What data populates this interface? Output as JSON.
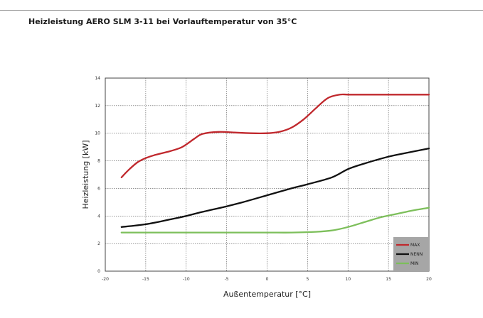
{
  "page": {
    "title": "Heizleistung AERO SLM 3-11 bei Vorlauftemperatur von 35°C"
  },
  "chart_data": {
    "type": "line",
    "title": "",
    "xlabel": "Außentemperatur [°C]",
    "ylabel": "Heizleistung [kW]",
    "xlim": [
      -20,
      20
    ],
    "ylim": [
      0,
      14
    ],
    "xticks": [
      -20,
      -15,
      -10,
      -5,
      0,
      5,
      10,
      15,
      20
    ],
    "yticks": [
      0,
      2,
      4,
      6,
      8,
      10,
      12,
      14
    ],
    "grid": true,
    "legend_position": "bottom-right",
    "series": [
      {
        "name": "MAX",
        "color": "#c0282d",
        "points": [
          [
            -18,
            6.8
          ],
          [
            -17,
            7.4
          ],
          [
            -16,
            7.9
          ],
          [
            -15,
            8.2
          ],
          [
            -14,
            8.4
          ],
          [
            -12,
            8.7
          ],
          [
            -10.5,
            9.0
          ],
          [
            -9,
            9.6
          ],
          [
            -8,
            9.95
          ],
          [
            -6,
            10.1
          ],
          [
            -4,
            10.05
          ],
          [
            -2,
            10.0
          ],
          [
            0,
            10.0
          ],
          [
            1.5,
            10.1
          ],
          [
            3,
            10.4
          ],
          [
            4.5,
            11.0
          ],
          [
            6,
            11.8
          ],
          [
            7.5,
            12.55
          ],
          [
            9,
            12.8
          ],
          [
            10,
            12.8
          ],
          [
            12,
            12.8
          ],
          [
            15,
            12.8
          ],
          [
            20,
            12.8
          ]
        ]
      },
      {
        "name": "NENN",
        "color": "#111111",
        "points": [
          [
            -18,
            3.2
          ],
          [
            -15,
            3.4
          ],
          [
            -12,
            3.75
          ],
          [
            -10,
            4.0
          ],
          [
            -8,
            4.3
          ],
          [
            -5,
            4.7
          ],
          [
            -3,
            5.0
          ],
          [
            0,
            5.5
          ],
          [
            3,
            6.0
          ],
          [
            5,
            6.3
          ],
          [
            8,
            6.8
          ],
          [
            10,
            7.4
          ],
          [
            12,
            7.8
          ],
          [
            15,
            8.3
          ],
          [
            17,
            8.55
          ],
          [
            20,
            8.9
          ]
        ]
      },
      {
        "name": "MIN",
        "color": "#7dbf5b",
        "points": [
          [
            -18,
            2.8
          ],
          [
            -15,
            2.8
          ],
          [
            -10,
            2.8
          ],
          [
            -5,
            2.8
          ],
          [
            0,
            2.8
          ],
          [
            3,
            2.8
          ],
          [
            6,
            2.85
          ],
          [
            8,
            2.95
          ],
          [
            10,
            3.2
          ],
          [
            12,
            3.55
          ],
          [
            14,
            3.9
          ],
          [
            16,
            4.15
          ],
          [
            18,
            4.4
          ],
          [
            20,
            4.6
          ]
        ]
      }
    ]
  }
}
